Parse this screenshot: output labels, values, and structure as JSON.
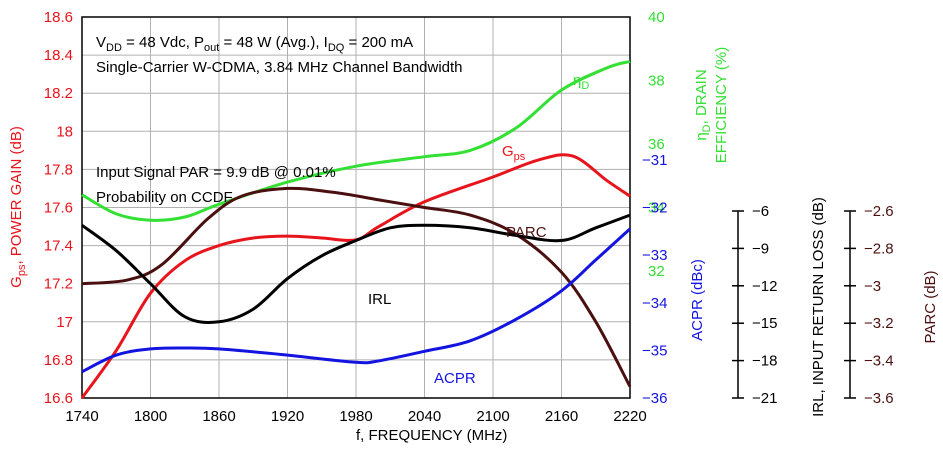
{
  "chart_data": {
    "type": "line",
    "annotations": {
      "line1_prefix": "V",
      "line1_sub1": "DD",
      "line1_mid1": " = 48 Vdc, P",
      "line1_sub2": "out",
      "line1_mid2": " = 48 W (Avg.), I",
      "line1_sub3": "DQ",
      "line1_end": " = 200 mA",
      "line2": "Single-Carrier W-CDMA, 3.84 MHz Channel Bandwidth",
      "par_line1": "Input Signal PAR = 9.9 dB @ 0.01%",
      "par_line2": "Probability on CCDF"
    },
    "x_axis": {
      "label": "f, FREQUENCY (MHz)",
      "range": [
        1740,
        2220
      ],
      "ticks": [
        1740,
        1800,
        1860,
        1920,
        1980,
        2040,
        2100,
        2160,
        2220
      ]
    },
    "gain_axis": {
      "label_main": "G",
      "label_sub": "ps",
      "label_rest": ", POWER GAIN (dB)",
      "range": [
        16.6,
        18.6
      ],
      "ticks": [
        "16.6",
        "16.8",
        "17",
        "17.2",
        "17.4",
        "17.6",
        "17.8",
        "18",
        "18.2",
        "18.4",
        "18.6"
      ],
      "color": "#e8141c"
    },
    "efficiency_axis": {
      "label_line1_pre": "η",
      "label_line1_sub": "D",
      "label_line1_rest": ", DRAIN",
      "label_line2": "EFFICIENCY (%)",
      "range": [
        28,
        40
      ],
      "ticks": [
        "32",
        "34",
        "36",
        "38",
        "40"
      ],
      "color": "#33e033"
    },
    "acpr_axis": {
      "label": "ACPR (dBc)",
      "range": [
        -36,
        -28
      ],
      "ticks": [
        "−31",
        "−32",
        "−33",
        "−34",
        "−35",
        "−36"
      ],
      "color": "#1414e0"
    },
    "irl_axis": {
      "label": "IRL, INPUT RETURN LOSS (dB)",
      "range": [
        -21,
        -6
      ],
      "ticks": [
        "−6",
        "−9",
        "−12",
        "−15",
        "−18",
        "−21"
      ],
      "color": "#000000"
    },
    "parc_axis": {
      "label": "PARC (dB)",
      "range": [
        -3.6,
        -2.6
      ],
      "ticks": [
        "−2.6",
        "−2.8",
        "−3",
        "−3.2",
        "−3.4",
        "−3.6"
      ],
      "color": "#4a1010"
    },
    "series": [
      {
        "name": "η",
        "name_sub": "D",
        "axis": "efficiency",
        "color": "#33e033",
        "x": [
          1740,
          1770,
          1800,
          1830,
          1860,
          1920,
          1980,
          2040,
          2080,
          2120,
          2160,
          2200,
          2220
        ],
        "y": [
          34.4,
          33.8,
          33.6,
          33.7,
          34.1,
          34.8,
          35.3,
          35.6,
          35.8,
          36.5,
          37.7,
          38.4,
          38.6
        ]
      },
      {
        "name": "G",
        "name_sub": "ps",
        "axis": "gain",
        "color": "#e8141c",
        "x": [
          1740,
          1770,
          1800,
          1830,
          1860,
          1890,
          1920,
          1950,
          1980,
          2000,
          2040,
          2100,
          2140,
          2170,
          2200,
          2220
        ],
        "y": [
          16.6,
          16.85,
          17.15,
          17.32,
          17.4,
          17.44,
          17.45,
          17.44,
          17.43,
          17.5,
          17.63,
          17.76,
          17.85,
          17.87,
          17.74,
          17.66
        ]
      },
      {
        "name": "PARC",
        "axis": "parc",
        "color": "#4a1010",
        "x": [
          1740,
          1780,
          1810,
          1850,
          1880,
          1920,
          1960,
          2000,
          2040,
          2080,
          2120,
          2160,
          2190,
          2220
        ],
        "y": [
          -3.3,
          -3.29,
          -3.25,
          -3.13,
          -3.07,
          -3.05,
          -3.06,
          -3.08,
          -3.1,
          -3.12,
          -3.17,
          -3.27,
          -3.4,
          -3.57
        ]
      },
      {
        "name": "IRL",
        "axis": "irl",
        "color": "#000000",
        "x": [
          1740,
          1770,
          1800,
          1830,
          1860,
          1890,
          1920,
          1950,
          1980,
          2010,
          2040,
          2080,
          2120,
          2160,
          2190,
          2220
        ],
        "y": [
          -14.2,
          -15.2,
          -16.5,
          -17.8,
          -18.0,
          -17.5,
          -16.3,
          -15.4,
          -14.8,
          -14.3,
          -14.2,
          -14.3,
          -14.6,
          -14.8,
          -14.3,
          -13.8
        ]
      },
      {
        "name": "ACPR",
        "axis": "acpr",
        "color": "#1414e0",
        "x": [
          1740,
          1770,
          1800,
          1830,
          1860,
          1920,
          1980,
          2000,
          2040,
          2080,
          2120,
          2160,
          2190,
          2220
        ],
        "y": [
          -35.45,
          -35.1,
          -34.97,
          -34.95,
          -34.97,
          -35.1,
          -35.25,
          -35.22,
          -35.02,
          -34.8,
          -34.35,
          -33.75,
          -33.1,
          -32.45
        ]
      }
    ]
  }
}
